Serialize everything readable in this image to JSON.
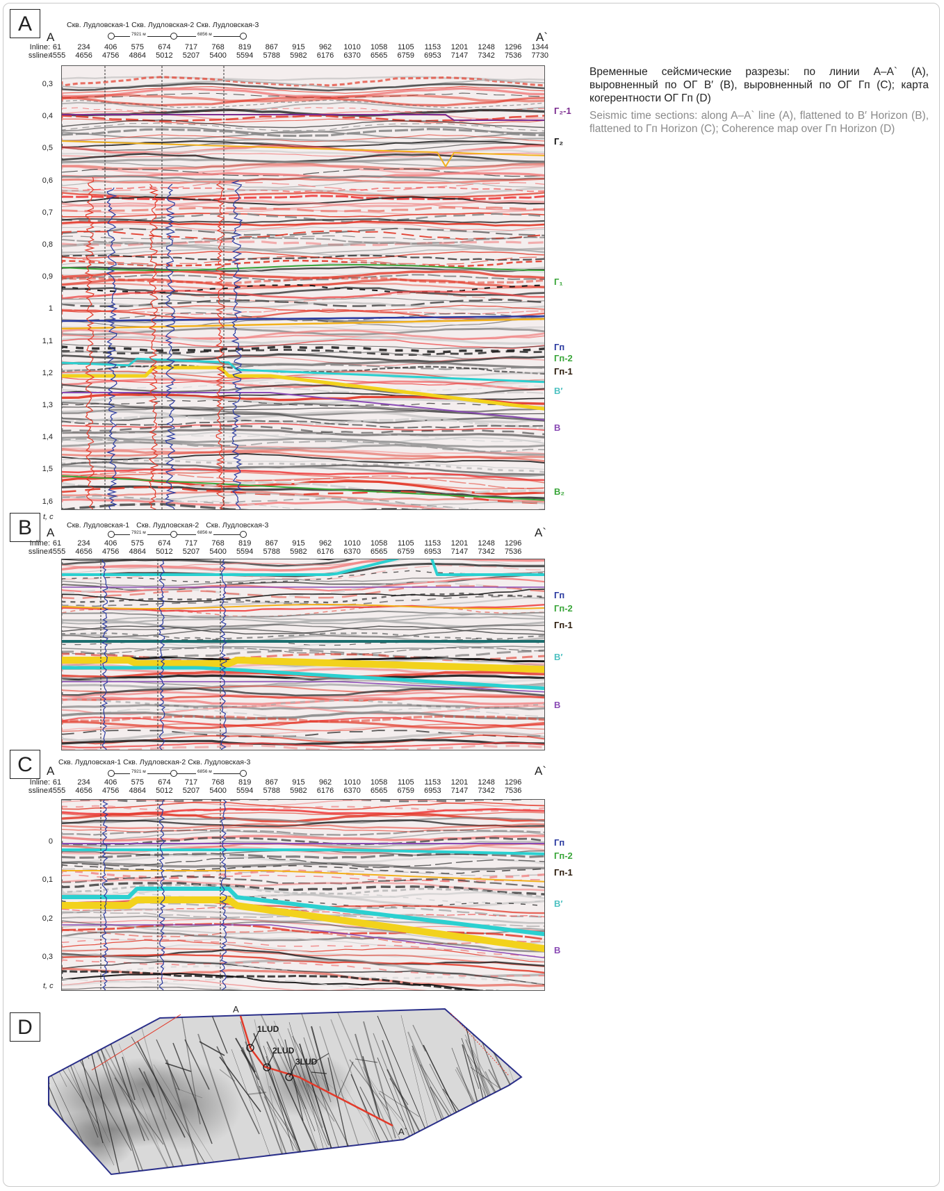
{
  "colors": {
    "G2_1": "#7b2b8f",
    "G2": "#111111",
    "G1": "#3aa63a",
    "Gp": "#2a3aa0",
    "Gp2": "#3aa63a",
    "Gp1": "#2b1b0b",
    "Vprime": "#4fc2c2",
    "V": "#8a4bb5",
    "V2": "#3aa63a",
    "caption_ru": "#222222",
    "caption_en": "#8a8a8a"
  },
  "panels": {
    "A": {
      "letter": "A",
      "start_label": "A",
      "end_label": "A`",
      "wells": [
        "Скв. Лудловская-1",
        "Скв. Лудловская-2",
        "Скв. Лудловская-3"
      ],
      "distances": [
        "7921 м",
        "6856 м"
      ],
      "inline_label": "Inline:",
      "ssline_label": "ssline:",
      "inline": [
        "61",
        "234",
        "406",
        "575",
        "674",
        "717",
        "768",
        "819",
        "867",
        "915",
        "962",
        "1010",
        "1058",
        "1105",
        "1153",
        "1201",
        "1248",
        "1296",
        "1344"
      ],
      "ssline": [
        "4555",
        "4656",
        "4756",
        "4864",
        "5012",
        "5207",
        "5400",
        "5594",
        "5788",
        "5982",
        "6176",
        "6370",
        "6565",
        "6759",
        "6953",
        "7147",
        "7342",
        "7536",
        "7730"
      ],
      "time_ticks": [
        "0,3",
        "0,4",
        "0,5",
        "0,6",
        "0,7",
        "0,8",
        "0,9",
        "1",
        "1,1",
        "1,2",
        "1,3",
        "1,4",
        "1,5",
        "1,6"
      ],
      "time_unit": "t, c",
      "horizons": [
        {
          "label": "Г₂-1",
          "color": "#7b2b8f"
        },
        {
          "label": "Г₂",
          "color": "#111111"
        },
        {
          "label": "Г₁",
          "color": "#3aa63a"
        },
        {
          "label": "Гп",
          "color": "#2a3aa0"
        },
        {
          "label": "Гп-2",
          "color": "#3aa63a"
        },
        {
          "label": "Гп-1",
          "color": "#2b1b0b"
        },
        {
          "label": "В′",
          "color": "#4fc2c2"
        },
        {
          "label": "В",
          "color": "#8a4bb5"
        },
        {
          "label": "В₂",
          "color": "#3aa63a"
        }
      ]
    },
    "B": {
      "letter": "B",
      "start_label": "A",
      "end_label": "A`",
      "wells": [
        "Скв. Лудловская-1",
        "Скв. Лудловская-2",
        "Скв. Лудловская-3"
      ],
      "distances": [
        "7921 м",
        "6856 м"
      ],
      "inline_label": "Inline:",
      "ssline_label": "ssline:",
      "inline": [
        "61",
        "234",
        "406",
        "575",
        "674",
        "717",
        "768",
        "819",
        "867",
        "915",
        "962",
        "1010",
        "1058",
        "1105",
        "1153",
        "1201",
        "1248",
        "1296"
      ],
      "ssline": [
        "4555",
        "4656",
        "4756",
        "4864",
        "5012",
        "5207",
        "5400",
        "5594",
        "5788",
        "5982",
        "6176",
        "6370",
        "6565",
        "6759",
        "6953",
        "7147",
        "7342",
        "7536"
      ],
      "horizons": [
        {
          "label": "Гп",
          "color": "#2a3aa0"
        },
        {
          "label": "Гп-2",
          "color": "#3aa63a"
        },
        {
          "label": "Гп-1",
          "color": "#2b1b0b"
        },
        {
          "label": "В′",
          "color": "#4fc2c2"
        },
        {
          "label": "В",
          "color": "#8a4bb5"
        }
      ]
    },
    "C": {
      "letter": "C",
      "start_label": "A",
      "end_label": "A`",
      "wells": [
        "Скв. Лудловская-1",
        "Скв. Лудловская-2",
        "Скв. Лудловская-3"
      ],
      "distances": [
        "7921 м",
        "6856 м"
      ],
      "inline_label": "Inline:",
      "ssline_label": "ssline:",
      "inline": [
        "61",
        "234",
        "406",
        "575",
        "674",
        "717",
        "768",
        "819",
        "867",
        "915",
        "962",
        "1010",
        "1058",
        "1105",
        "1153",
        "1201",
        "1248",
        "1296"
      ],
      "ssline": [
        "4555",
        "4656",
        "4756",
        "4864",
        "5012",
        "5207",
        "5400",
        "5594",
        "5788",
        "5982",
        "6176",
        "6370",
        "6565",
        "6759",
        "6953",
        "7147",
        "7342",
        "7536"
      ],
      "time_ticks": [
        "0",
        "0,1",
        "0,2",
        "0,3"
      ],
      "time_unit": "t, c",
      "horizons": [
        {
          "label": "Гп",
          "color": "#2a3aa0"
        },
        {
          "label": "Гп-2",
          "color": "#3aa63a"
        },
        {
          "label": "Гп-1",
          "color": "#2b1b0b"
        },
        {
          "label": "В′",
          "color": "#4fc2c2"
        },
        {
          "label": "В",
          "color": "#8a4bb5"
        }
      ]
    },
    "D": {
      "letter": "D",
      "start_label": "A",
      "end_label": "A`",
      "wells": [
        "1LUD",
        "2LUD",
        "3LUD"
      ]
    }
  },
  "caption": {
    "ru": "Временные сейсмические разрезы: по линии А–А` (A), выровненный по ОГ В′ (B), выровненный по ОГ Гп (C); карта когерентности ОГ Гп (D)",
    "en": "Seismic time sections: along A–A` line (A), flattened to B′ Horizon (B), flattened to Гп Horizon (C); Coherence map over Гп Horizon (D)"
  }
}
